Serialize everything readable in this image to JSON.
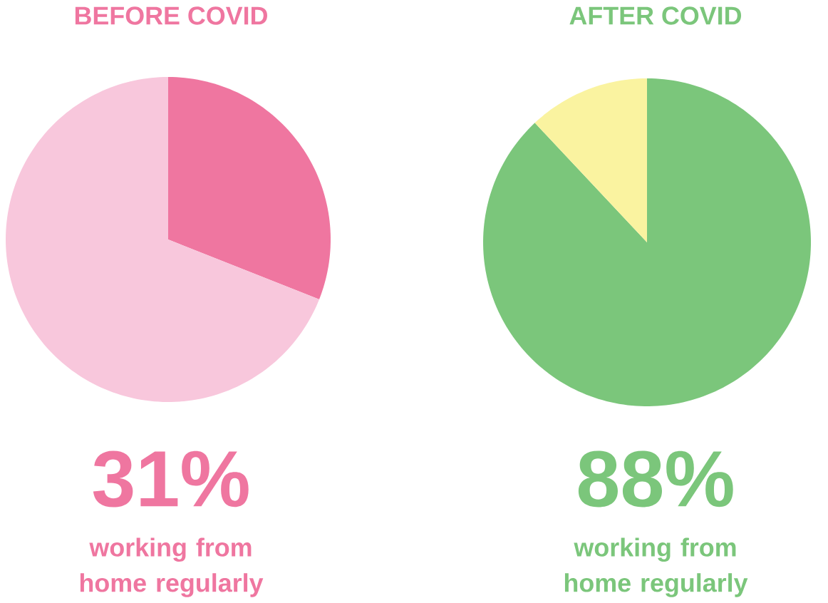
{
  "chart_data": [
    {
      "type": "pie",
      "title": "BEFORE COVID",
      "categories": [
        null,
        null
      ],
      "values": [
        31,
        69
      ],
      "colors": [
        "#ef76a0",
        "#f8c7dc"
      ],
      "annotations": [
        "31%",
        "working from home regularly"
      ]
    },
    {
      "type": "pie",
      "title": "AFTER COVID",
      "categories": [
        null,
        null
      ],
      "values": [
        88,
        12
      ],
      "colors": [
        "#7bc67b",
        "#faf3a0"
      ],
      "annotations": [
        "88%",
        "working from home regularly"
      ]
    }
  ]
}
